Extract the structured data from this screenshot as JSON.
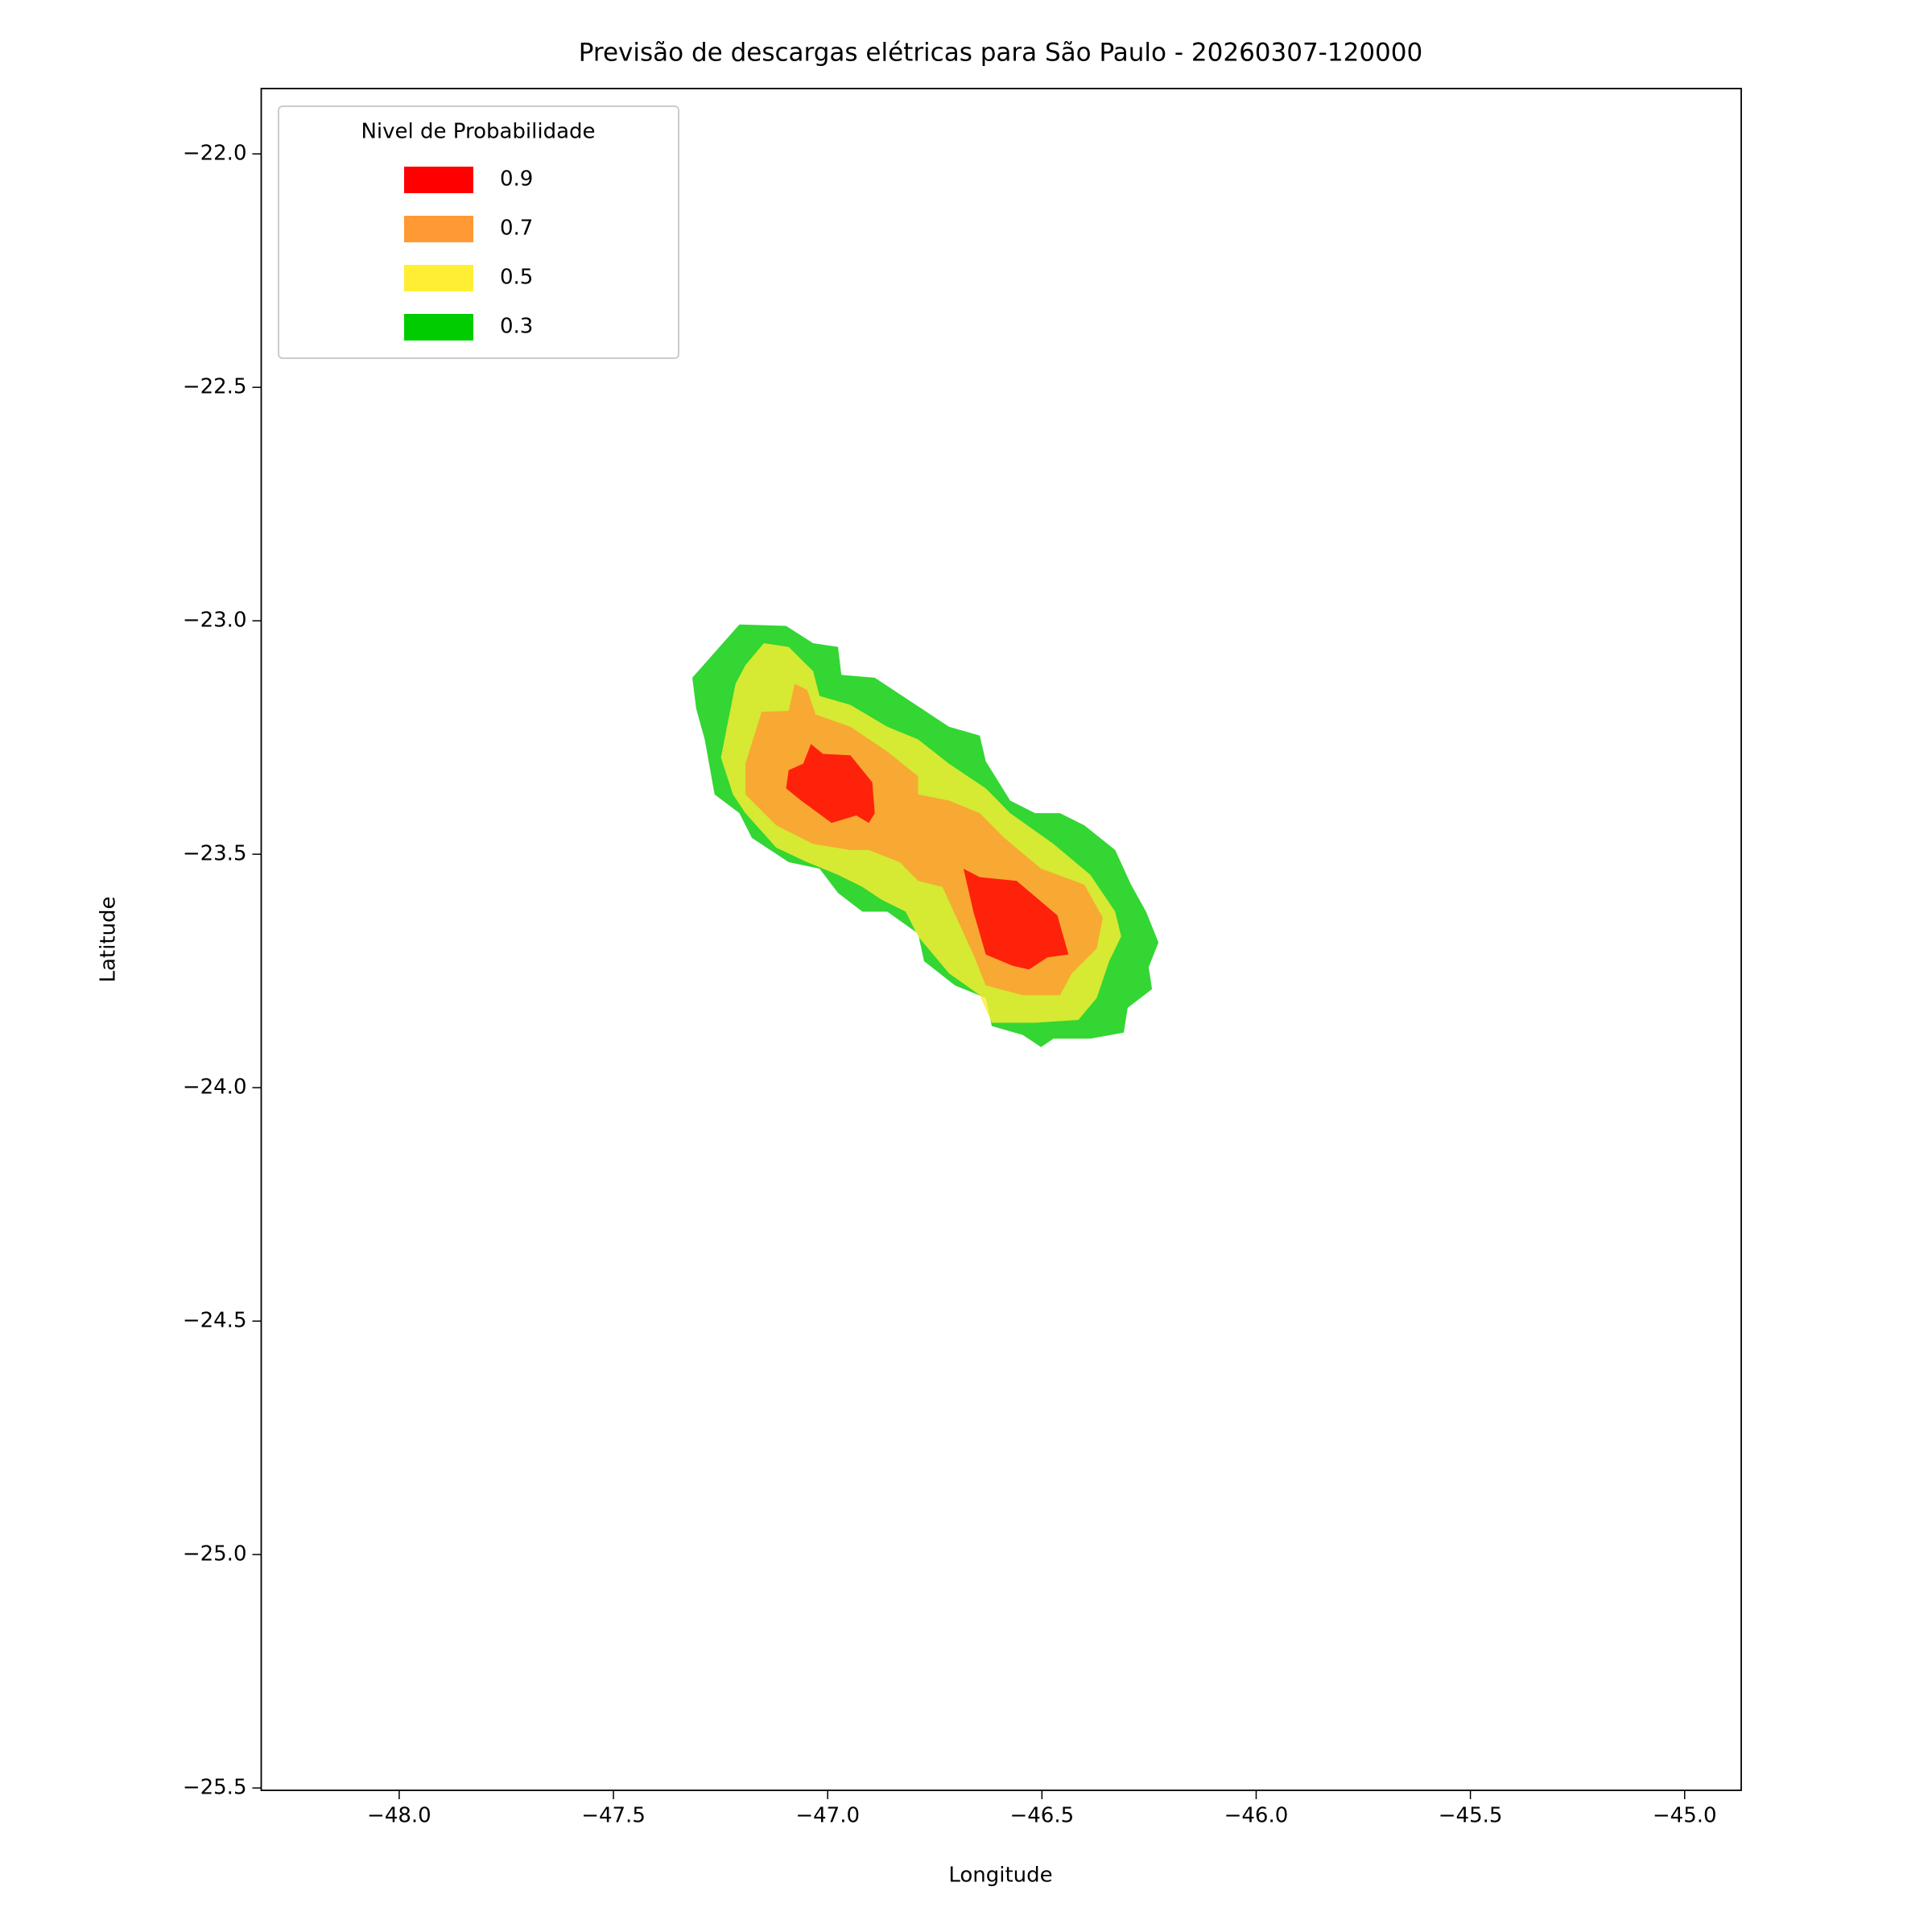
{
  "chart_data": {
    "type": "contourf",
    "title": "Previsão de descargas elétricas para São Paulo - 20260307-120000",
    "x_label": "Longitude",
    "y_label": "Latitude",
    "xlim": [
      -48.322,
      -44.868
    ],
    "ylim": [
      -25.505,
      -21.86
    ],
    "xticks": [
      {
        "value": -48.0,
        "label": "−48.0"
      },
      {
        "value": -47.5,
        "label": "−47.5"
      },
      {
        "value": -47.0,
        "label": "−47.0"
      },
      {
        "value": -46.5,
        "label": "−46.5"
      },
      {
        "value": -46.0,
        "label": "−46.0"
      },
      {
        "value": -45.5,
        "label": "−45.5"
      },
      {
        "value": -45.0,
        "label": "−45.0"
      }
    ],
    "yticks": [
      {
        "value": -22.0,
        "label": "−22.0"
      },
      {
        "value": -22.5,
        "label": "−22.5"
      },
      {
        "value": -23.0,
        "label": "−23.0"
      },
      {
        "value": -23.5,
        "label": "−23.5"
      },
      {
        "value": -24.0,
        "label": "−24.0"
      },
      {
        "value": -24.5,
        "label": "−24.5"
      },
      {
        "value": -25.0,
        "label": "−25.0"
      },
      {
        "value": -25.5,
        "label": "−25.5"
      }
    ],
    "legend_title": "Nivel de Probabilidade",
    "legend_position": "upper left",
    "alpha": 0.8,
    "series": [
      {
        "name": "0.9",
        "color": "#ff0000",
        "polygons": [
          {
            "x": [
              -47.039,
              -47.011,
              -46.947,
              -46.896,
              -46.89,
              -46.904,
              -46.933,
              -46.991,
              -47.062,
              -47.097,
              -47.091,
              -47.057
            ],
            "y": [
              -23.264,
              -23.285,
              -23.288,
              -23.346,
              -23.412,
              -23.433,
              -23.417,
              -23.433,
              -23.385,
              -23.359,
              -23.32,
              -23.306
            ]
          },
          {
            "x": [
              -46.683,
              -46.645,
              -46.559,
              -46.464,
              -46.438,
              -46.487,
              -46.53,
              -46.568,
              -46.631,
              -46.66
            ],
            "y": [
              -23.531,
              -23.549,
              -23.557,
              -23.631,
              -23.715,
              -23.721,
              -23.747,
              -23.739,
              -23.715,
              -23.623
            ]
          }
        ]
      },
      {
        "name": "0.7",
        "color": "#ff9933",
        "polygons": [
          {
            "x": [
              -47.077,
              -47.048,
              -47.028,
              -46.947,
              -46.861,
              -46.789,
              -46.789,
              -46.717,
              -46.645,
              -46.588,
              -46.502,
              -46.401,
              -46.358,
              -46.372,
              -46.43,
              -46.458,
              -46.545,
              -46.631,
              -46.66,
              -46.732,
              -46.789,
              -46.832,
              -46.904,
              -46.947,
              -47.034,
              -47.12,
              -47.192,
              -47.192,
              -47.154,
              -47.091
            ],
            "y": [
              -23.135,
              -23.148,
              -23.201,
              -23.227,
              -23.28,
              -23.333,
              -23.372,
              -23.385,
              -23.412,
              -23.465,
              -23.531,
              -23.565,
              -23.636,
              -23.702,
              -23.755,
              -23.802,
              -23.802,
              -23.781,
              -23.715,
              -23.57,
              -23.557,
              -23.517,
              -23.491,
              -23.491,
              -23.478,
              -23.438,
              -23.372,
              -23.306,
              -23.195,
              -23.193
            ]
          }
        ]
      },
      {
        "name": "0.5",
        "color": "#ffee33",
        "polygons": [
          {
            "x": [
              -47.149,
              -47.091,
              -47.034,
              -47.019,
              -46.947,
              -46.861,
              -46.789,
              -46.717,
              -46.631,
              -46.574,
              -46.473,
              -46.387,
              -46.329,
              -46.315,
              -46.343,
              -46.372,
              -46.415,
              -46.516,
              -46.617,
              -46.645,
              -46.717,
              -46.789,
              -46.818,
              -46.875,
              -46.919,
              -46.976,
              -47.048,
              -47.12,
              -47.192,
              -47.221,
              -47.249,
              -47.235,
              -47.215,
              -47.192
            ],
            "y": [
              -23.048,
              -23.056,
              -23.108,
              -23.161,
              -23.18,
              -23.227,
              -23.254,
              -23.306,
              -23.359,
              -23.412,
              -23.478,
              -23.544,
              -23.623,
              -23.676,
              -23.729,
              -23.808,
              -23.855,
              -23.861,
              -23.861,
              -23.802,
              -23.755,
              -23.676,
              -23.623,
              -23.597,
              -23.57,
              -23.544,
              -23.517,
              -23.486,
              -23.412,
              -23.372,
              -23.293,
              -23.227,
              -23.135,
              -23.095
            ]
          }
        ]
      },
      {
        "name": "0.3",
        "color": "#00cc00",
        "polygons": [
          {
            "x": [
              -47.206,
              -47.097,
              -47.034,
              -46.976,
              -46.968,
              -46.89,
              -46.804,
              -46.717,
              -46.645,
              -46.631,
              -46.574,
              -46.516,
              -46.458,
              -46.401,
              -46.329,
              -46.292,
              -46.257,
              -46.228,
              -46.251,
              -46.243,
              -46.3,
              -46.309,
              -46.387,
              -46.473,
              -46.502,
              -46.545,
              -46.617,
              -46.631,
              -46.703,
              -46.775,
              -46.789,
              -46.861,
              -46.919,
              -46.976,
              -47.019,
              -47.091,
              -47.177,
              -47.206,
              -47.264,
              -47.287,
              -47.307,
              -47.316
            ],
            "y": [
              -23.008,
              -23.011,
              -23.048,
              -23.056,
              -23.116,
              -23.122,
              -23.174,
              -23.227,
              -23.246,
              -23.301,
              -23.385,
              -23.412,
              -23.412,
              -23.438,
              -23.491,
              -23.565,
              -23.623,
              -23.689,
              -23.742,
              -23.789,
              -23.829,
              -23.882,
              -23.895,
              -23.895,
              -23.913,
              -23.887,
              -23.868,
              -23.808,
              -23.781,
              -23.729,
              -23.67,
              -23.623,
              -23.623,
              -23.583,
              -23.531,
              -23.517,
              -23.465,
              -23.412,
              -23.372,
              -23.254,
              -23.188,
              -23.122
            ]
          }
        ]
      }
    ]
  }
}
